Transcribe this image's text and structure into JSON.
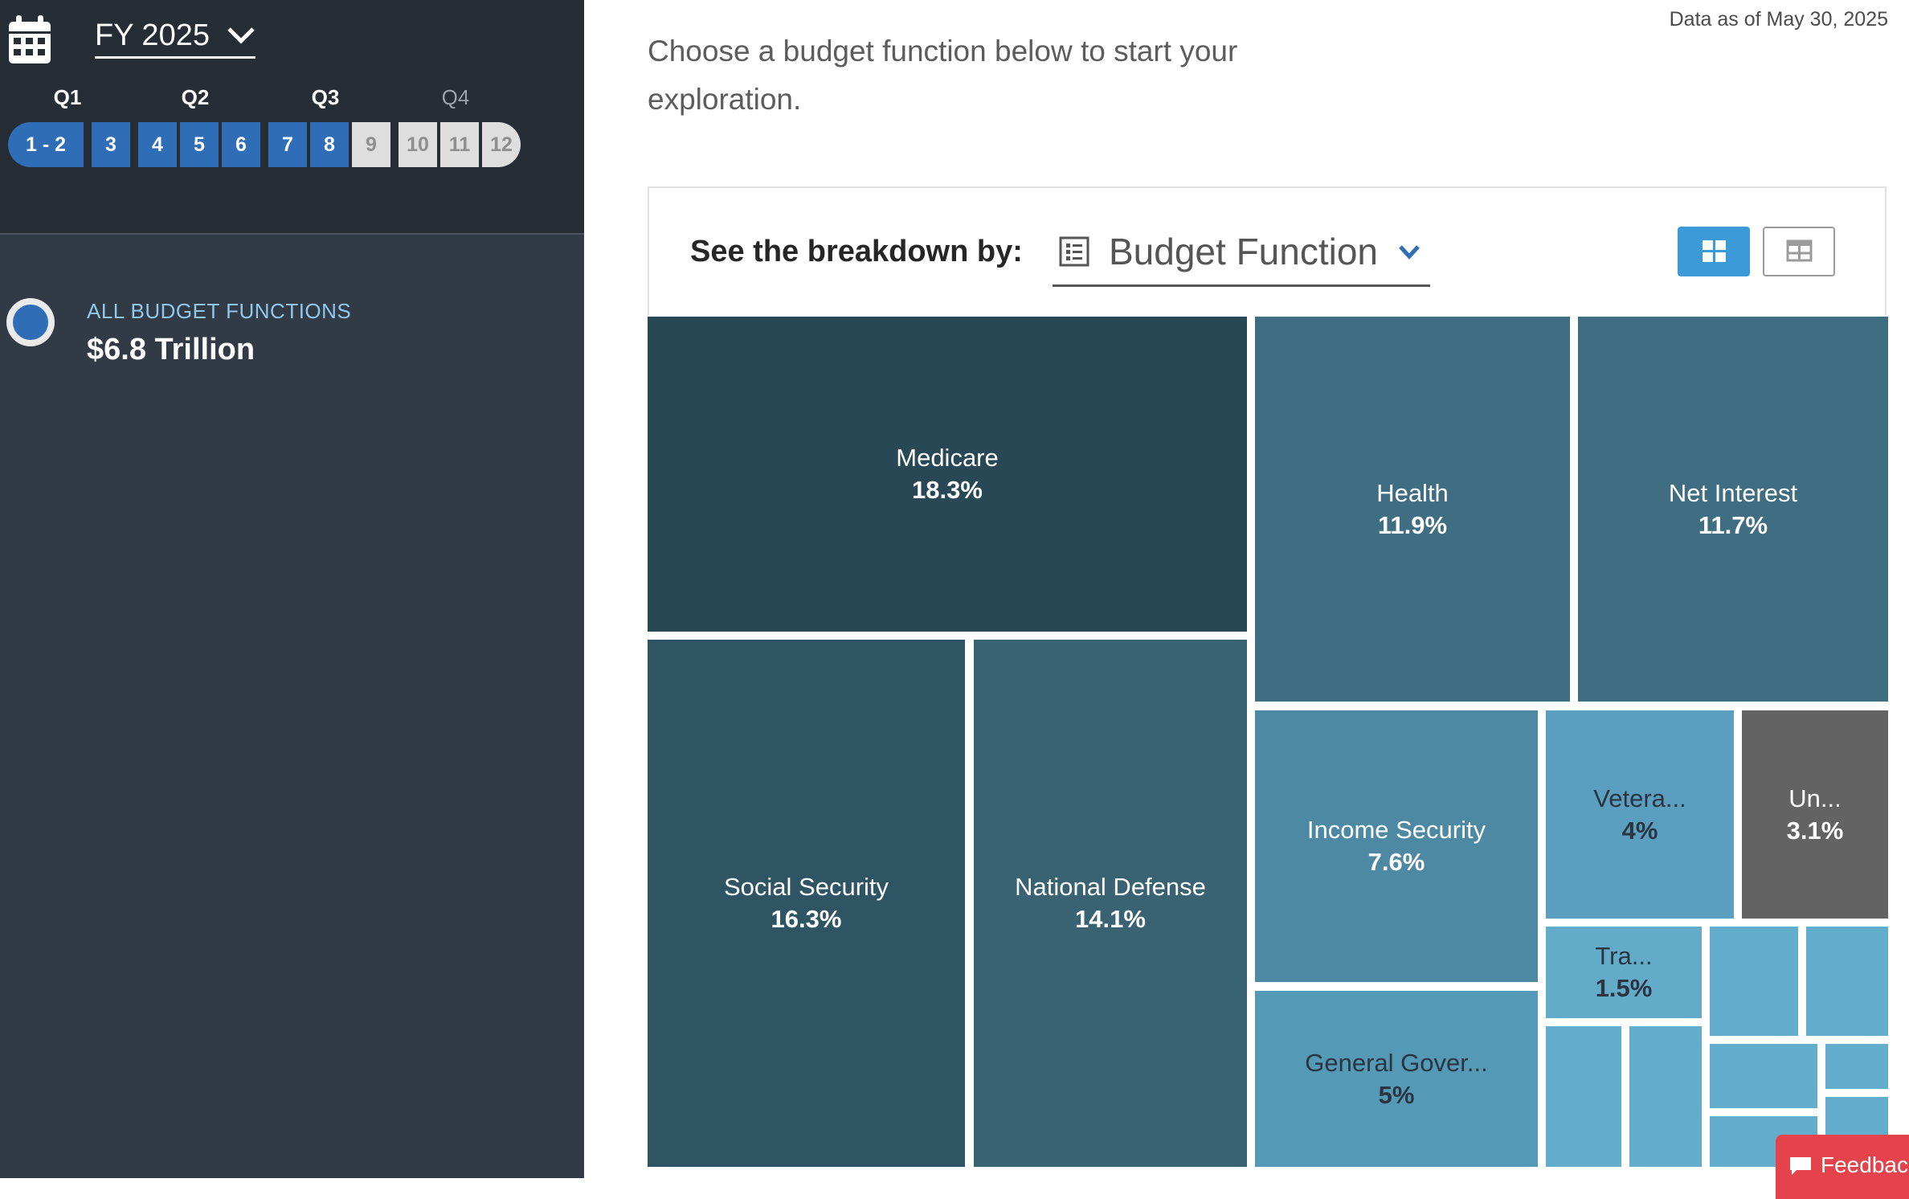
{
  "sidebar": {
    "fiscal_year": "FY 2025",
    "quarters": [
      {
        "label": "Q1",
        "active": true
      },
      {
        "label": "Q2",
        "active": true
      },
      {
        "label": "Q3",
        "active": true
      },
      {
        "label": "Q4",
        "active": false
      }
    ],
    "months": [
      {
        "label": "1 - 2",
        "active": true
      },
      {
        "label": "3",
        "active": true
      },
      {
        "label": "4",
        "active": true
      },
      {
        "label": "5",
        "active": true
      },
      {
        "label": "6",
        "active": true
      },
      {
        "label": "7",
        "active": true
      },
      {
        "label": "8",
        "active": true
      },
      {
        "label": "9",
        "active": false
      },
      {
        "label": "10",
        "active": false
      },
      {
        "label": "11",
        "active": false
      },
      {
        "label": "12",
        "active": false
      }
    ],
    "all_functions_label": "ALL BUDGET FUNCTIONS",
    "all_functions_amount": "$6.8 Trillion"
  },
  "header": {
    "date_note": "Data as of May 30, 2025",
    "intro": "Choose a budget function below to start your exploration."
  },
  "toolbar": {
    "breakdown_label": "See the breakdown by:",
    "breakdown_value": "Budget Function",
    "icons": [
      "calendar-icon",
      "chevron-down-icon",
      "list-icon",
      "treemap-view-icon",
      "table-view-icon",
      "comment-icon"
    ]
  },
  "chart_data": {
    "type": "treemap",
    "unit": "%",
    "items": [
      {
        "name": "Medicare",
        "value": 18.3,
        "color": "#294856"
      },
      {
        "name": "Social Security",
        "value": 16.3,
        "color": "#2f5565"
      },
      {
        "name": "National Defense",
        "value": 14.1,
        "color": "#396372"
      },
      {
        "name": "Health",
        "value": 11.9,
        "color": "#3f6e82"
      },
      {
        "name": "Net Interest",
        "value": 11.7,
        "color": "#3f6e82"
      },
      {
        "name": "Income Security",
        "value": 7.6,
        "color": "#4e89a4"
      },
      {
        "name": "General Gover...",
        "value": 5,
        "color": "#5499b6"
      },
      {
        "name": "Vetera...",
        "value": 4,
        "color": "#5a9fbf"
      },
      {
        "name": "Un...",
        "value": 3.1,
        "color": "#636363"
      },
      {
        "name": "Tra...",
        "value": 1.5,
        "color": "#62acca"
      }
    ],
    "unlabeled_color": "#62aecc"
  },
  "feedback_label": "Feedback"
}
